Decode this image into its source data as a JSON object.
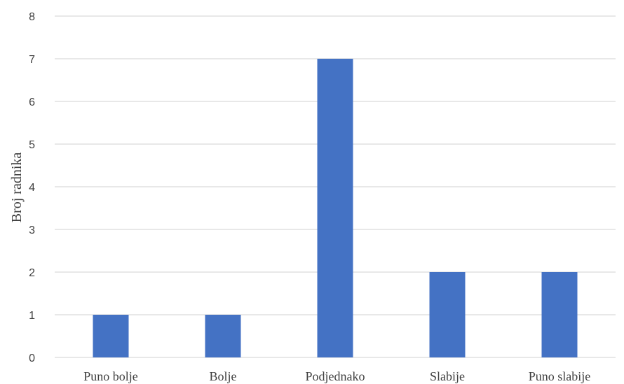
{
  "chart_data": {
    "type": "bar",
    "categories": [
      "Puno bolje",
      "Bolje",
      "Podjednako",
      "Slabije",
      "Puno slabije"
    ],
    "values": [
      1,
      1,
      7,
      2,
      2
    ],
    "title": "",
    "xlabel": "",
    "ylabel": "Broj radnika",
    "ylim": [
      0,
      8
    ],
    "yticks": [
      0,
      1,
      2,
      3,
      4,
      5,
      6,
      7,
      8
    ],
    "grid": true,
    "legend": "none",
    "colors": {
      "bar": "#4472C4",
      "grid": "#D9D9D9",
      "text": "#404040"
    }
  }
}
